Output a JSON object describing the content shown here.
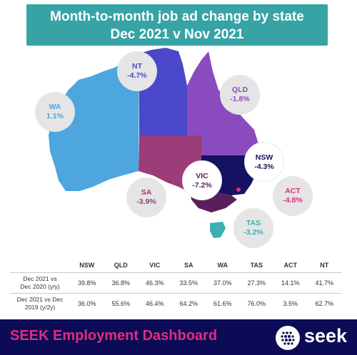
{
  "title": {
    "line1": "Month-to-month job ad change by state",
    "line2": "Dec 2021 v Nov 2021"
  },
  "states": {
    "nt": {
      "name": "NT",
      "value": "-4.7%",
      "color": "#4a47c8"
    },
    "wa": {
      "name": "WA",
      "value": "1.1%",
      "color": "#4da6dd"
    },
    "qld": {
      "name": "QLD",
      "value": "-1.8%",
      "color": "#8a4bbf"
    },
    "sa": {
      "name": "SA",
      "value": "-3.9%",
      "color": "#9c3c78"
    },
    "nsw": {
      "name": "NSW",
      "value": "-4.3%",
      "color": "#151261"
    },
    "vic": {
      "name": "VIC",
      "value": "-7.2%",
      "color": "#5a1f5a"
    },
    "act": {
      "name": "ACT",
      "value": "-4.8%",
      "color": "#e22b7f"
    },
    "tas": {
      "name": "TAS",
      "value": "-3.2%",
      "color": "#3ab0b0"
    }
  },
  "table": {
    "headers": [
      "NSW",
      "QLD",
      "VIC",
      "SA",
      "WA",
      "TAS",
      "ACT",
      "NT"
    ],
    "rows": [
      {
        "label1": "Dec 2021 vs",
        "label2": "Dec 2020 (y/y)",
        "values": [
          "39.8%",
          "36.8%",
          "46.3%",
          "33.5%",
          "37.0%",
          "27.3%",
          "14.1%",
          "41.7%"
        ]
      },
      {
        "label1": "Dec 2021 vs Dec",
        "label2": "2019 (y/2y)",
        "values": [
          "36.0%",
          "55.6%",
          "46.4%",
          "64.2%",
          "61.6%",
          "76.0%",
          "3.5%",
          "62.7%"
        ]
      }
    ]
  },
  "footer": {
    "dashboard": "SEEK Employment Dashboard",
    "brand": "seek"
  }
}
